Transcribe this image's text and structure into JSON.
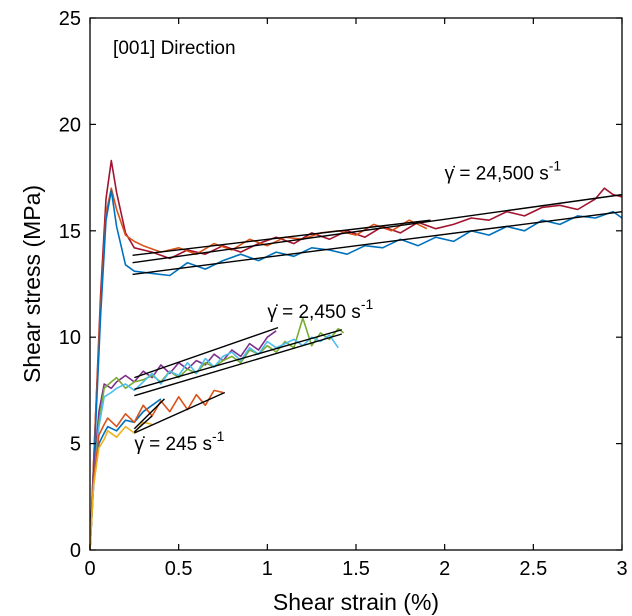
{
  "chart_data": {
    "type": "line",
    "title": "",
    "xlabel": "Shear strain (%)",
    "ylabel": "Shear stress (MPa)",
    "xlim": [
      0,
      3
    ],
    "ylim": [
      0,
      25
    ],
    "grid": false,
    "legend": "none",
    "x_ticks": [
      0,
      0.5,
      1,
      1.5,
      2,
      2.5,
      3
    ],
    "x_tick_labels": [
      "0",
      "0.5",
      "1",
      "1.5",
      "2",
      "2.5",
      "3"
    ],
    "y_ticks": [
      0,
      5,
      10,
      15,
      20,
      25
    ],
    "y_tick_labels": [
      "0",
      "5",
      "10",
      "15",
      "20",
      "25"
    ],
    "annotations": [
      {
        "text": "[001] Direction",
        "x": 0.13,
        "y": 23.3
      },
      {
        "text": "γ̇ = 24,500 s",
        "sup": "-1",
        "x": 2.0,
        "y": 17.4
      },
      {
        "text": "γ̇ = 2,450 s",
        "sup": "-1",
        "x": 1.0,
        "y": 10.9
      },
      {
        "text": "γ̇ = 245 s",
        "sup": "-1",
        "x": 0.25,
        "y": 4.7
      }
    ],
    "series": [
      {
        "group": "24,500",
        "color": "#A2142F",
        "x": [
          0,
          0.03,
          0.06,
          0.09,
          0.12,
          0.15,
          0.2,
          0.25,
          0.35,
          0.45,
          0.55,
          0.65,
          0.75,
          0.85,
          0.95,
          1.05,
          1.15,
          1.25,
          1.35,
          1.45,
          1.55,
          1.65,
          1.75,
          1.85,
          1.95,
          2.05,
          2.15,
          2.25,
          2.35,
          2.45,
          2.55,
          2.65,
          2.75,
          2.85,
          2.9,
          2.95,
          3.0
        ],
        "y": [
          0,
          6,
          12,
          16.5,
          18.3,
          16.8,
          14.9,
          14.2,
          14.0,
          13.7,
          14.1,
          13.9,
          14.3,
          14.0,
          14.4,
          14.7,
          14.4,
          14.9,
          14.6,
          15.0,
          14.7,
          15.2,
          14.9,
          15.4,
          15.1,
          15.3,
          15.6,
          15.5,
          15.9,
          15.7,
          16.1,
          16.2,
          16.0,
          16.5,
          17.0,
          16.7,
          16.6
        ]
      },
      {
        "group": "24,500",
        "color": "#D95319",
        "x": [
          0,
          0.03,
          0.06,
          0.09,
          0.12,
          0.15,
          0.2,
          0.25,
          0.3,
          0.4,
          0.5,
          0.6,
          0.7,
          0.8,
          0.9,
          1.0,
          1.1,
          1.2,
          1.3,
          1.4,
          1.5,
          1.6,
          1.7,
          1.8,
          1.9
        ],
        "y": [
          0,
          6,
          11.5,
          15.8,
          17.0,
          16.0,
          14.8,
          14.5,
          14.3,
          14.0,
          14.2,
          13.9,
          14.4,
          14.1,
          14.6,
          14.3,
          14.7,
          14.6,
          14.9,
          15.0,
          14.8,
          15.3,
          15.0,
          15.5,
          15.1
        ]
      },
      {
        "group": "24,500",
        "color": "#0072BD",
        "x": [
          0,
          0.03,
          0.06,
          0.09,
          0.12,
          0.15,
          0.2,
          0.25,
          0.35,
          0.45,
          0.55,
          0.65,
          0.75,
          0.85,
          0.95,
          1.05,
          1.15,
          1.25,
          1.35,
          1.45,
          1.55,
          1.65,
          1.75,
          1.85,
          1.95,
          2.05,
          2.15,
          2.25,
          2.35,
          2.45,
          2.55,
          2.65,
          2.75,
          2.85,
          2.95,
          3.0
        ],
        "y": [
          0,
          5.5,
          11,
          15.5,
          16.9,
          15.2,
          13.4,
          13.1,
          13.0,
          12.9,
          13.5,
          13.2,
          13.6,
          13.9,
          13.6,
          14.0,
          13.8,
          14.2,
          14.1,
          13.9,
          14.3,
          14.2,
          14.6,
          14.3,
          14.7,
          14.5,
          15.0,
          14.8,
          15.2,
          15.0,
          15.5,
          15.3,
          15.7,
          15.6,
          15.9,
          15.6
        ]
      },
      {
        "group": "2,450",
        "color": "#7E2F8E",
        "x": [
          0,
          0.02,
          0.05,
          0.08,
          0.12,
          0.15,
          0.2,
          0.25,
          0.3,
          0.35,
          0.4,
          0.45,
          0.5,
          0.55,
          0.6,
          0.65,
          0.7,
          0.75,
          0.8,
          0.85,
          0.9,
          0.95,
          1.0,
          1.05
        ],
        "y": [
          0,
          3.5,
          6.5,
          7.8,
          7.6,
          7.9,
          8.2,
          7.9,
          8.4,
          8.1,
          8.7,
          8.3,
          8.8,
          8.5,
          8.9,
          8.7,
          9.2,
          8.9,
          9.4,
          9.1,
          9.7,
          9.4,
          10.0,
          10.3
        ]
      },
      {
        "group": "2,450",
        "color": "#77AC30",
        "x": [
          0,
          0.02,
          0.05,
          0.08,
          0.12,
          0.15,
          0.2,
          0.25,
          0.3,
          0.35,
          0.4,
          0.45,
          0.5,
          0.55,
          0.6,
          0.65,
          0.7,
          0.75,
          0.8,
          0.85,
          0.9,
          0.95,
          1.0,
          1.05,
          1.1,
          1.15,
          1.2,
          1.25,
          1.3,
          1.35,
          1.4,
          1.43
        ],
        "y": [
          0,
          3,
          6,
          7.6,
          7.9,
          8.1,
          7.6,
          7.9,
          8.0,
          8.2,
          7.9,
          8.4,
          8.1,
          8.5,
          8.3,
          8.8,
          8.6,
          8.9,
          9.1,
          8.8,
          9.4,
          9.2,
          9.6,
          9.3,
          9.8,
          9.5,
          10.9,
          9.6,
          10.2,
          9.9,
          10.4,
          10.2
        ]
      },
      {
        "group": "2,450",
        "color": "#4DBEEE",
        "x": [
          0,
          0.02,
          0.05,
          0.08,
          0.12,
          0.15,
          0.2,
          0.25,
          0.3,
          0.35,
          0.4,
          0.45,
          0.5,
          0.55,
          0.6,
          0.65,
          0.7,
          0.75,
          0.8,
          0.85,
          0.9,
          0.95,
          1.0,
          1.05,
          1.1,
          1.15,
          1.2,
          1.25,
          1.3,
          1.35,
          1.4
        ],
        "y": [
          0,
          3,
          5.8,
          7.2,
          7.4,
          7.6,
          7.8,
          7.5,
          7.9,
          8.3,
          7.8,
          8.4,
          8.2,
          8.8,
          8.3,
          9.0,
          8.6,
          9.1,
          9.3,
          8.9,
          9.5,
          9.2,
          9.8,
          9.5,
          9.7,
          9.9,
          9.6,
          10.0,
          9.8,
          10.1,
          9.5
        ]
      },
      {
        "group": "245",
        "color": "#0072BD",
        "x": [
          0,
          0.02,
          0.05,
          0.08,
          0.1,
          0.15,
          0.2,
          0.25,
          0.3,
          0.35,
          0.4
        ],
        "y": [
          0,
          3,
          5.0,
          5.5,
          5.8,
          5.6,
          6.1,
          6.0,
          6.5,
          6.8,
          7.1
        ]
      },
      {
        "group": "245",
        "color": "#D95319",
        "x": [
          0,
          0.02,
          0.05,
          0.08,
          0.1,
          0.15,
          0.2,
          0.25,
          0.3,
          0.35,
          0.4,
          0.45,
          0.5,
          0.55,
          0.6,
          0.65,
          0.7,
          0.75
        ],
        "y": [
          0,
          3.2,
          5.4,
          5.9,
          6.2,
          5.8,
          6.4,
          6.0,
          6.8,
          6.3,
          7.0,
          6.5,
          7.2,
          6.6,
          7.3,
          6.8,
          7.5,
          7.4
        ]
      },
      {
        "group": "245",
        "color": "#EDB120",
        "x": [
          0,
          0.02,
          0.05,
          0.08,
          0.1,
          0.15,
          0.2,
          0.25,
          0.3,
          0.35
        ],
        "y": [
          0,
          3,
          4.8,
          5.2,
          5.6,
          5.3,
          5.8,
          5.5,
          6.0,
          5.9
        ]
      }
    ],
    "fit_lines": [
      {
        "x": [
          0.24,
          3.0
        ],
        "y": [
          13.5,
          16.7
        ]
      },
      {
        "x": [
          0.24,
          1.92
        ],
        "y": [
          13.85,
          15.5
        ]
      },
      {
        "x": [
          0.24,
          3.0
        ],
        "y": [
          12.95,
          15.9
        ]
      },
      {
        "x": [
          0.25,
          1.06
        ],
        "y": [
          8.1,
          10.45
        ]
      },
      {
        "x": [
          0.25,
          1.42
        ],
        "y": [
          7.55,
          10.35
        ]
      },
      {
        "x": [
          0.25,
          1.42
        ],
        "y": [
          7.25,
          10.15
        ]
      },
      {
        "x": [
          0.25,
          0.42
        ],
        "y": [
          5.7,
          7.1
        ]
      },
      {
        "x": [
          0.25,
          0.76
        ],
        "y": [
          5.5,
          7.4
        ]
      },
      {
        "x": [
          0.25,
          0.35
        ],
        "y": [
          5.55,
          6.3
        ]
      }
    ]
  }
}
